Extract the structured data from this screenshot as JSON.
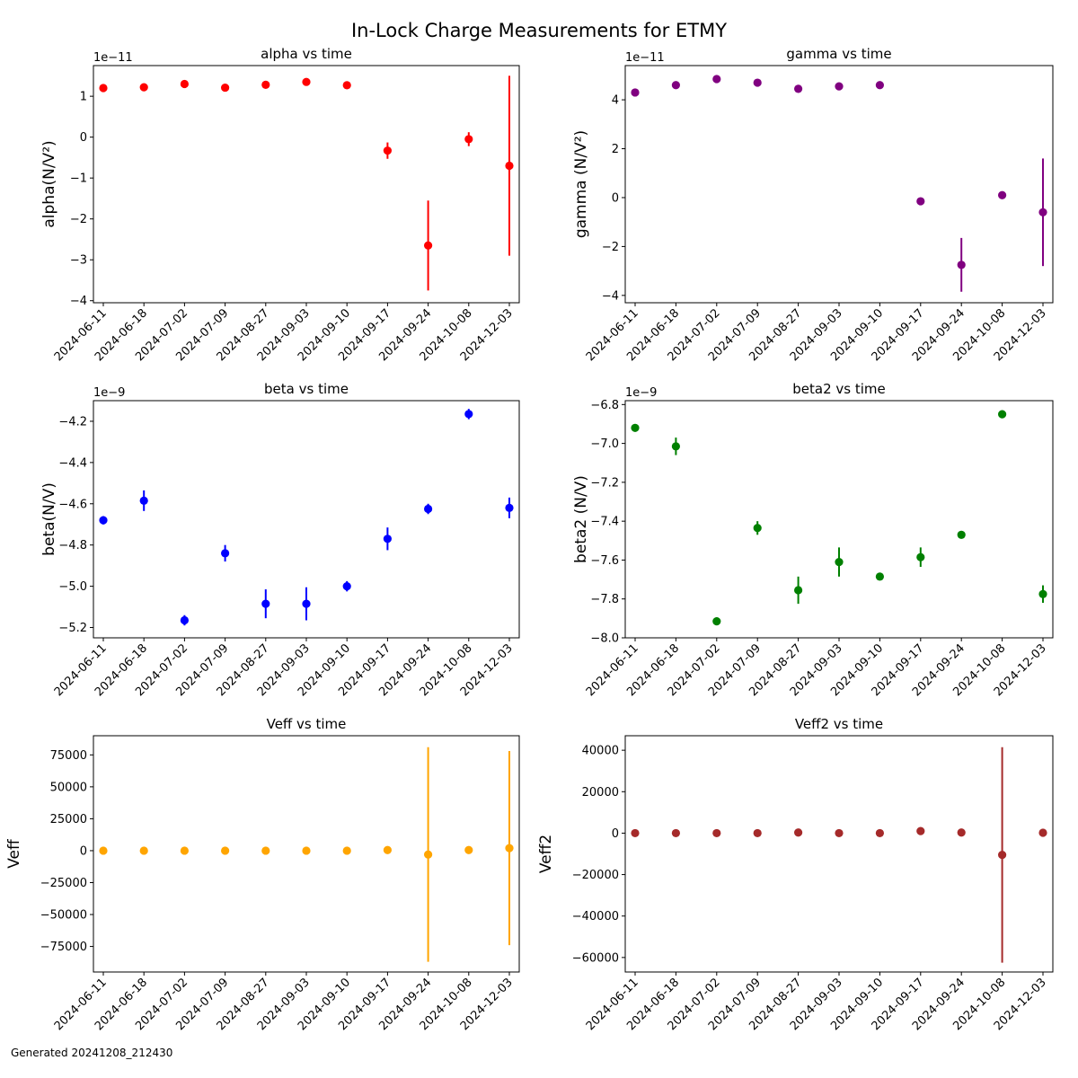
{
  "figure": {
    "title": "In-Lock Charge Measurements for ETMY",
    "footer": "Generated 20241208_212430"
  },
  "chart_data": [
    {
      "type": "scatter",
      "title": "alpha vs time",
      "xlabel": "",
      "ylabel": "alpha(N/V²)",
      "color": "#ff0000",
      "offset_text": "1e−11",
      "categories": [
        "2024-06-11",
        "2024-06-18",
        "2024-07-02",
        "2024-07-09",
        "2024-08-27",
        "2024-09-03",
        "2024-09-10",
        "2024-09-17",
        "2024-09-24",
        "2024-10-08",
        "2024-12-03"
      ],
      "values": [
        1.2,
        1.22,
        1.3,
        1.21,
        1.28,
        1.35,
        1.27,
        -0.33,
        -2.65,
        -0.05,
        -0.7
      ],
      "errors": [
        0.05,
        0.05,
        0.05,
        0.05,
        0.05,
        0.05,
        0.05,
        0.2,
        1.1,
        0.17,
        2.2
      ],
      "ylim": [
        -4.05,
        1.75
      ],
      "yticks": [
        1,
        0,
        -1,
        -2,
        -3,
        -4
      ],
      "ytick_labels": [
        "1",
        "0",
        "−1",
        "−2",
        "−3",
        "−4"
      ]
    },
    {
      "type": "scatter",
      "title": "gamma vs time",
      "xlabel": "",
      "ylabel": "gamma (N/V²)",
      "color": "#800080",
      "offset_text": "1e−11",
      "categories": [
        "2024-06-11",
        "2024-06-18",
        "2024-07-02",
        "2024-07-09",
        "2024-08-27",
        "2024-09-03",
        "2024-09-10",
        "2024-09-17",
        "2024-09-24",
        "2024-10-08",
        "2024-12-03"
      ],
      "values": [
        4.3,
        4.6,
        4.85,
        4.7,
        4.45,
        4.55,
        4.6,
        -0.15,
        -2.75,
        0.1,
        -0.6
      ],
      "errors": [
        0.1,
        0.1,
        0.1,
        0.1,
        0.1,
        0.1,
        0.1,
        0.15,
        1.1,
        0.15,
        2.2
      ],
      "ylim": [
        -4.3,
        5.4
      ],
      "yticks": [
        4,
        2,
        0,
        -2,
        -4
      ],
      "ytick_labels": [
        "4",
        "2",
        "0",
        "−2",
        "−4"
      ]
    },
    {
      "type": "scatter",
      "title": "beta vs time",
      "xlabel": "",
      "ylabel": "beta(N/V)",
      "color": "#0000ff",
      "offset_text": "1e−9",
      "categories": [
        "2024-06-11",
        "2024-06-18",
        "2024-07-02",
        "2024-07-09",
        "2024-08-27",
        "2024-09-03",
        "2024-09-10",
        "2024-09-17",
        "2024-09-24",
        "2024-10-08",
        "2024-12-03"
      ],
      "values": [
        -4.68,
        -4.585,
        -5.165,
        -4.84,
        -5.085,
        -5.085,
        -5.0,
        -4.77,
        -4.625,
        -4.165,
        -4.62
      ],
      "errors": [
        0.02,
        0.05,
        0.025,
        0.04,
        0.07,
        0.08,
        0.025,
        0.055,
        0.025,
        0.025,
        0.05
      ],
      "ylim": [
        -5.25,
        -4.1
      ],
      "yticks": [
        -4.2,
        -4.4,
        -4.6,
        -4.8,
        -5.0,
        -5.2
      ],
      "ytick_labels": [
        "−4.2",
        "−4.4",
        "−4.6",
        "−4.8",
        "−5.0",
        "−5.2"
      ]
    },
    {
      "type": "scatter",
      "title": "beta2 vs time",
      "xlabel": "",
      "ylabel": "beta2 (N/V)",
      "color": "#008000",
      "offset_text": "1e−9",
      "categories": [
        "2024-06-11",
        "2024-06-18",
        "2024-07-02",
        "2024-07-09",
        "2024-08-27",
        "2024-09-03",
        "2024-09-10",
        "2024-09-17",
        "2024-09-24",
        "2024-10-08",
        "2024-12-03"
      ],
      "values": [
        -6.92,
        -7.015,
        -7.915,
        -7.435,
        -7.755,
        -7.61,
        -7.685,
        -7.585,
        -7.47,
        -6.85,
        -7.775
      ],
      "errors": [
        0.02,
        0.045,
        0.02,
        0.035,
        0.07,
        0.075,
        0.02,
        0.05,
        0.02,
        0.02,
        0.045
      ],
      "ylim": [
        -8.0,
        -6.78
      ],
      "yticks": [
        -6.8,
        -7.0,
        -7.2,
        -7.4,
        -7.6,
        -7.8,
        -8.0
      ],
      "ytick_labels": [
        "−6.8",
        "−7.0",
        "−7.2",
        "−7.4",
        "−7.6",
        "−7.8",
        "−8.0"
      ]
    },
    {
      "type": "scatter",
      "title": "Veff vs time",
      "xlabel": "",
      "ylabel": "Veff",
      "color": "#ffa500",
      "offset_text": "",
      "categories": [
        "2024-06-11",
        "2024-06-18",
        "2024-07-02",
        "2024-07-09",
        "2024-08-27",
        "2024-09-03",
        "2024-09-10",
        "2024-09-17",
        "2024-09-24",
        "2024-10-08",
        "2024-12-03"
      ],
      "values": [
        0,
        0,
        0,
        0,
        0,
        0,
        0,
        500,
        -3000,
        500,
        2000
      ],
      "errors": [
        0,
        0,
        0,
        0,
        0,
        0,
        0,
        0,
        84000,
        0,
        76000
      ],
      "ylim": [
        -95000,
        90000
      ],
      "yticks": [
        75000,
        50000,
        25000,
        0,
        -25000,
        -50000,
        -75000
      ],
      "ytick_labels": [
        "75000",
        "50000",
        "25000",
        "0",
        "−25000",
        "−50000",
        "−75000"
      ]
    },
    {
      "type": "scatter",
      "title": "Veff2 vs time",
      "xlabel": "",
      "ylabel": "Veff2",
      "color": "#a52a2a",
      "offset_text": "",
      "categories": [
        "2024-06-11",
        "2024-06-18",
        "2024-07-02",
        "2024-07-09",
        "2024-08-27",
        "2024-09-03",
        "2024-09-10",
        "2024-09-17",
        "2024-09-24",
        "2024-10-08",
        "2024-12-03"
      ],
      "values": [
        0,
        0,
        0,
        0,
        300,
        0,
        0,
        1000,
        300,
        -10500,
        200
      ],
      "errors": [
        0,
        0,
        0,
        0,
        0,
        0,
        0,
        0,
        0,
        52000,
        0
      ],
      "ylim": [
        -67000,
        47000
      ],
      "yticks": [
        40000,
        20000,
        0,
        -20000,
        -40000,
        -60000
      ],
      "ytick_labels": [
        "40000",
        "20000",
        "0",
        "−20000",
        "−40000",
        "−60000"
      ]
    }
  ]
}
